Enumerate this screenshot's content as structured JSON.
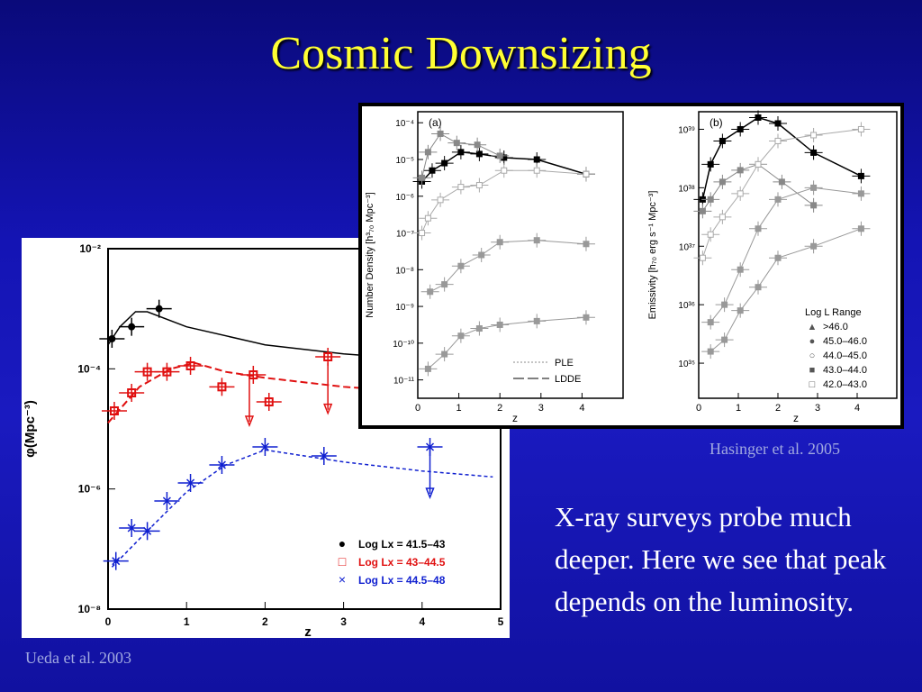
{
  "slide": {
    "title": "Cosmic Downsizing",
    "body_text": "X-ray surveys probe much deeper.  Here we see that peak depends on the luminosity.",
    "caption_hasinger": "Hasinger et al. 2005",
    "caption_ueda": "Ueda et al. 2003"
  },
  "colors": {
    "background": "#1414b4",
    "title": "#ffff33",
    "text": "#ffffff",
    "caption": "#a0a8e0",
    "series_black": "#000000",
    "series_red": "#e01010",
    "series_blue": "#1020d0"
  },
  "chart_data": [
    {
      "type": "scatter",
      "xlabel": "z",
      "ylabel": "φ(Mpc⁻³)",
      "xlim": [
        0,
        5
      ],
      "ylim_log10": [
        -8,
        -2
      ],
      "log_y": true,
      "x_ticks": [
        "0",
        "1",
        "2",
        "3",
        "4",
        "5"
      ],
      "y_ticks": [
        "10⁻²",
        "10⁻⁴",
        "10⁻⁶",
        "10⁻⁸"
      ],
      "legend": [
        {
          "name": "Log Lx = 41.5–43",
          "marker": "●",
          "color": "#000000"
        },
        {
          "name": "Log Lx = 43–44.5",
          "marker": "□",
          "color": "#e01010"
        },
        {
          "name": "Log Lx = 44.5–48",
          "marker": "×",
          "color": "#1020d0"
        }
      ],
      "series": [
        {
          "name": "Log Lx = 41.5–43",
          "color": "#000000",
          "points": [
            [
              0.05,
              -3.5
            ],
            [
              0.3,
              -3.3
            ],
            [
              0.65,
              -3.0
            ]
          ],
          "model": [
            [
              0.0,
              -3.6
            ],
            [
              0.15,
              -3.3
            ],
            [
              0.35,
              -3.05
            ],
            [
              0.5,
              -3.05
            ],
            [
              1.0,
              -3.3
            ],
            [
              2.0,
              -3.6
            ],
            [
              3.0,
              -3.75
            ],
            [
              4.0,
              -3.85
            ]
          ]
        },
        {
          "name": "Log Lx = 43–44.5",
          "color": "#e01010",
          "points": [
            [
              0.08,
              -4.7
            ],
            [
              0.3,
              -4.4
            ],
            [
              0.5,
              -4.05
            ],
            [
              0.75,
              -4.05
            ],
            [
              1.05,
              -3.95
            ],
            [
              1.45,
              -4.3
            ],
            [
              1.85,
              -4.1
            ],
            [
              2.05,
              -4.55
            ],
            [
              2.8,
              -3.8
            ]
          ],
          "upper_limits": [
            [
              1.8,
              -4.1
            ],
            [
              2.8,
              -3.9
            ]
          ],
          "model": [
            [
              0.0,
              -4.9
            ],
            [
              0.4,
              -4.3
            ],
            [
              0.8,
              -4.0
            ],
            [
              1.1,
              -3.9
            ],
            [
              1.5,
              -4.05
            ],
            [
              2.0,
              -4.15
            ],
            [
              3.0,
              -4.3
            ],
            [
              4.1,
              -4.4
            ]
          ]
        },
        {
          "name": "Log Lx = 44.5–48",
          "color": "#1020d0",
          "points": [
            [
              0.1,
              -7.2
            ],
            [
              0.3,
              -6.65
            ],
            [
              0.5,
              -6.7
            ],
            [
              0.75,
              -6.2
            ],
            [
              1.05,
              -5.9
            ],
            [
              1.45,
              -5.6
            ],
            [
              2.0,
              -5.3
            ],
            [
              2.75,
              -5.45
            ],
            [
              4.1,
              -5.3
            ]
          ],
          "upper_limits": [
            [
              4.1,
              -5.3
            ]
          ],
          "model": [
            [
              0.05,
              -7.3
            ],
            [
              0.5,
              -6.7
            ],
            [
              1.0,
              -6.05
            ],
            [
              1.5,
              -5.6
            ],
            [
              2.0,
              -5.35
            ],
            [
              3.0,
              -5.55
            ],
            [
              4.0,
              -5.7
            ],
            [
              4.9,
              -5.8
            ]
          ]
        }
      ]
    },
    {
      "type": "scatter",
      "panel": "(a)",
      "xlabel": "z",
      "ylabel": "Number Density [h³₇₀ Mpc⁻³]",
      "xlim": [
        0,
        5
      ],
      "ylim_log10": [
        -11.5,
        -3.7
      ],
      "log_y": true,
      "x_ticks": [
        "0",
        "1",
        "2",
        "3",
        "4"
      ],
      "y_ticks": [
        "10⁻⁴",
        "10⁻⁵",
        "10⁻⁶",
        "10⁻⁷",
        "10⁻⁸",
        "10⁻⁹",
        "10⁻¹⁰",
        "10⁻¹¹"
      ],
      "legend": [
        {
          "name": "PLE",
          "style": "dotted"
        },
        {
          "name": "LDDE",
          "style": "long-dash"
        }
      ],
      "series": [
        {
          "name": "43.0-44.0",
          "color": "#000000",
          "points": [
            [
              0.1,
              -5.6
            ],
            [
              0.35,
              -5.3
            ],
            [
              0.65,
              -5.1
            ],
            [
              1.05,
              -4.8
            ],
            [
              1.5,
              -4.85
            ],
            [
              2.1,
              -4.95
            ],
            [
              2.9,
              -5.0
            ],
            [
              4.1,
              -5.4
            ]
          ]
        },
        {
          "name": "42.0-43.0",
          "color": "#888888",
          "points": [
            [
              0.1,
              -5.5
            ],
            [
              0.25,
              -4.8
            ],
            [
              0.55,
              -4.3
            ],
            [
              0.95,
              -4.55
            ],
            [
              1.45,
              -4.6
            ],
            [
              2.0,
              -4.9
            ]
          ]
        },
        {
          "name": "44.0-45.0",
          "color": "#aaaaaa",
          "points": [
            [
              0.1,
              -7.0
            ],
            [
              0.25,
              -6.6
            ],
            [
              0.55,
              -6.1
            ],
            [
              1.05,
              -5.75
            ],
            [
              1.5,
              -5.7
            ],
            [
              2.1,
              -5.3
            ],
            [
              2.9,
              -5.3
            ],
            [
              4.1,
              -5.4
            ]
          ]
        },
        {
          "name": "45.0-46.0",
          "color": "#999999",
          "points": [
            [
              0.3,
              -8.6
            ],
            [
              0.65,
              -8.4
            ],
            [
              1.05,
              -7.9
            ],
            [
              1.55,
              -7.6
            ],
            [
              2.0,
              -7.25
            ],
            [
              2.9,
              -7.2
            ],
            [
              4.1,
              -7.3
            ]
          ]
        },
        {
          "name": ">46.0",
          "color": "#999999",
          "points": [
            [
              0.25,
              -10.7
            ],
            [
              0.65,
              -10.3
            ],
            [
              1.05,
              -9.8
            ],
            [
              1.5,
              -9.6
            ],
            [
              2.0,
              -9.5
            ],
            [
              2.9,
              -9.4
            ],
            [
              4.1,
              -9.3
            ]
          ]
        }
      ]
    },
    {
      "type": "scatter",
      "panel": "(b)",
      "xlabel": "z",
      "ylabel": "Emissivity [h₇₀ erg s⁻¹ Mpc⁻³]",
      "xlim": [
        0,
        5
      ],
      "ylim_log10": [
        34.4,
        39.3
      ],
      "log_y": true,
      "x_ticks": [
        "0",
        "1",
        "2",
        "3",
        "4"
      ],
      "y_ticks": [
        "10³⁹",
        "10³⁸",
        "10³⁷",
        "10³⁶",
        "10³⁵"
      ],
      "legend_title": "Log L Range",
      "legend": [
        {
          "name": ">46.0",
          "marker": "▲"
        },
        {
          "name": "45.0–46.0",
          "marker": "●"
        },
        {
          "name": "44.0–45.0",
          "marker": "○"
        },
        {
          "name": "43.0–44.0",
          "marker": "■"
        },
        {
          "name": "42.0–43.0",
          "marker": "□"
        }
      ],
      "series": [
        {
          "name": "43.0–44.0",
          "color": "#000000",
          "points": [
            [
              0.1,
              37.8
            ],
            [
              0.3,
              38.4
            ],
            [
              0.6,
              38.8
            ],
            [
              1.05,
              39.0
            ],
            [
              1.5,
              39.2
            ],
            [
              2.0,
              39.1
            ],
            [
              2.9,
              38.6
            ],
            [
              4.1,
              38.2
            ]
          ]
        },
        {
          "name": "42.0–43.0",
          "color": "#888888",
          "points": [
            [
              0.1,
              37.6
            ],
            [
              0.3,
              37.8
            ],
            [
              0.6,
              38.1
            ],
            [
              1.05,
              38.3
            ],
            [
              1.5,
              38.4
            ],
            [
              2.1,
              38.1
            ],
            [
              2.9,
              37.7
            ]
          ]
        },
        {
          "name": "44.0–45.0",
          "color": "#aaaaaa",
          "points": [
            [
              0.1,
              36.8
            ],
            [
              0.3,
              37.2
            ],
            [
              0.6,
              37.5
            ],
            [
              1.05,
              37.9
            ],
            [
              1.5,
              38.4
            ],
            [
              2.0,
              38.8
            ],
            [
              2.9,
              38.9
            ],
            [
              4.1,
              39.0
            ]
          ]
        },
        {
          "name": "45.0–46.0",
          "color": "#999999",
          "points": [
            [
              0.3,
              35.7
            ],
            [
              0.65,
              36.0
            ],
            [
              1.05,
              36.6
            ],
            [
              1.5,
              37.3
            ],
            [
              2.0,
              37.8
            ],
            [
              2.9,
              38.0
            ],
            [
              4.1,
              37.9
            ]
          ]
        },
        {
          "name": ">46.0",
          "color": "#999999",
          "points": [
            [
              0.3,
              35.2
            ],
            [
              0.65,
              35.4
            ],
            [
              1.05,
              35.9
            ],
            [
              1.5,
              36.3
            ],
            [
              2.0,
              36.8
            ],
            [
              2.9,
              37.0
            ],
            [
              4.1,
              37.3
            ]
          ]
        }
      ]
    }
  ]
}
